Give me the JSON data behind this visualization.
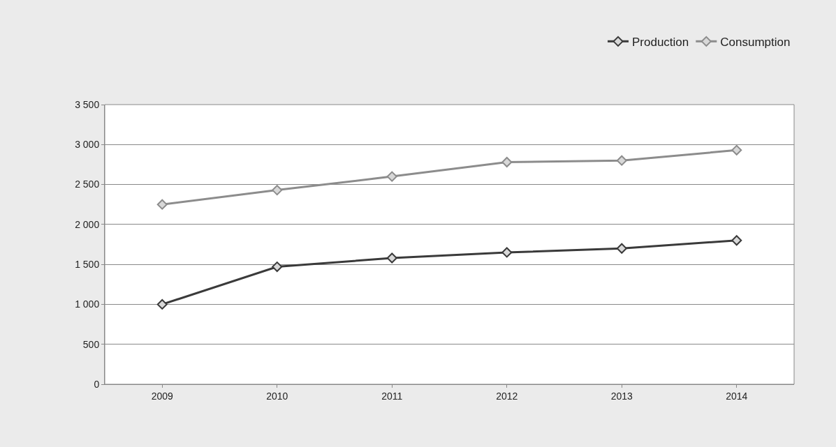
{
  "chart_data": {
    "type": "line",
    "categories": [
      "2009",
      "2010",
      "2011",
      "2012",
      "2013",
      "2014"
    ],
    "series": [
      {
        "name": "Production",
        "color": "#3a3a3a",
        "values": [
          1000,
          1470,
          1580,
          1650,
          1700,
          1800
        ]
      },
      {
        "name": "Consumption",
        "color": "#8c8c8c",
        "values": [
          2250,
          2430,
          2600,
          2780,
          2800,
          2930
        ]
      }
    ],
    "ylim": [
      0,
      3500
    ],
    "yticks": [
      0,
      500,
      {
        "value": 1000,
        "label": "1 000"
      },
      {
        "value": 1500,
        "label": "1 500"
      },
      {
        "value": 2000,
        "label": "2 000"
      },
      {
        "value": 2500,
        "label": "2 500"
      },
      {
        "value": 3000,
        "label": "3 000"
      },
      {
        "value": 3500,
        "label": "3 500"
      }
    ],
    "grid": "y",
    "legend": "top right",
    "marker": "diamond",
    "line_style": "solid"
  }
}
